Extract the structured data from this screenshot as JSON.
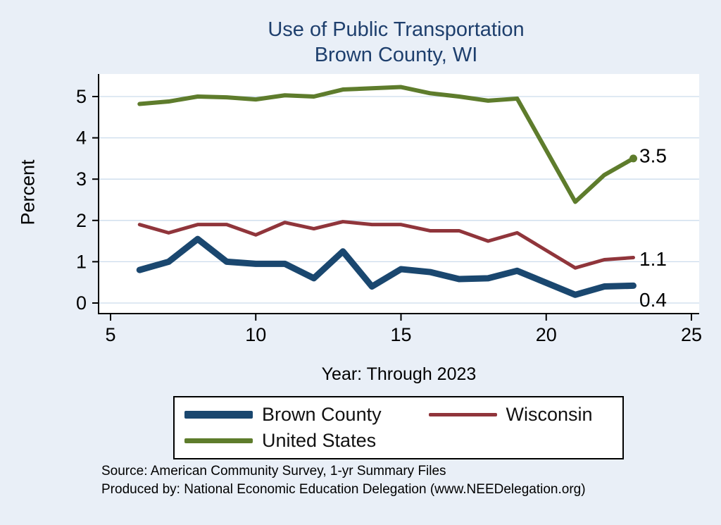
{
  "title": {
    "line1": "Use of Public Transportation",
    "line2": "Brown County, WI"
  },
  "axes": {
    "ylabel": "Percent",
    "xlabel": "Year: Through 2023",
    "x_ticks": [
      "5",
      "10",
      "15",
      "20",
      "25"
    ],
    "y_ticks": [
      "0",
      "1",
      "2",
      "3",
      "4",
      "5"
    ]
  },
  "chart_data": {
    "type": "line",
    "title": "Use of Public Transportation Brown County, WI",
    "xlabel": "Year: Through 2023",
    "ylabel": "Percent",
    "xlim": [
      5,
      25
    ],
    "ylim": [
      0,
      5.45
    ],
    "grid": "horizontal",
    "legend_position": "bottom",
    "x": [
      6,
      7,
      8,
      9,
      10,
      11,
      12,
      13,
      14,
      15,
      16,
      17,
      18,
      19,
      21,
      22,
      23
    ],
    "series": [
      {
        "name": "Brown County",
        "color": "#1a476f",
        "end_label": "0.4",
        "values": [
          0.8,
          1.0,
          1.55,
          1.0,
          0.95,
          0.95,
          0.6,
          1.25,
          0.4,
          0.82,
          0.75,
          0.58,
          0.6,
          0.78,
          0.2,
          0.4,
          0.42
        ]
      },
      {
        "name": "Wisconsin",
        "color": "#90353b",
        "end_label": "1.1",
        "values": [
          1.9,
          1.7,
          1.9,
          1.9,
          1.65,
          1.95,
          1.8,
          1.97,
          1.9,
          1.9,
          1.75,
          1.75,
          1.5,
          1.7,
          0.85,
          1.05,
          1.1
        ]
      },
      {
        "name": "United States",
        "color": "#5e7c2c",
        "end_label": "3.5",
        "values": [
          4.82,
          4.88,
          5.0,
          4.98,
          4.93,
          5.03,
          5.0,
          5.17,
          5.2,
          5.23,
          5.08,
          5.0,
          4.9,
          4.95,
          2.45,
          3.1,
          3.5
        ]
      }
    ]
  },
  "footer": {
    "line1": "Source: American Community Survey, 1-yr Summary Files",
    "line2": "Produced by: National Economic Education Delegation (www.NEEDelegation.org)"
  },
  "colors": {
    "background": "#e9eff7",
    "plot_background": "#ffffff",
    "grid": "#ccdcec",
    "axis": "#000000",
    "title": "#1e3f6d"
  }
}
